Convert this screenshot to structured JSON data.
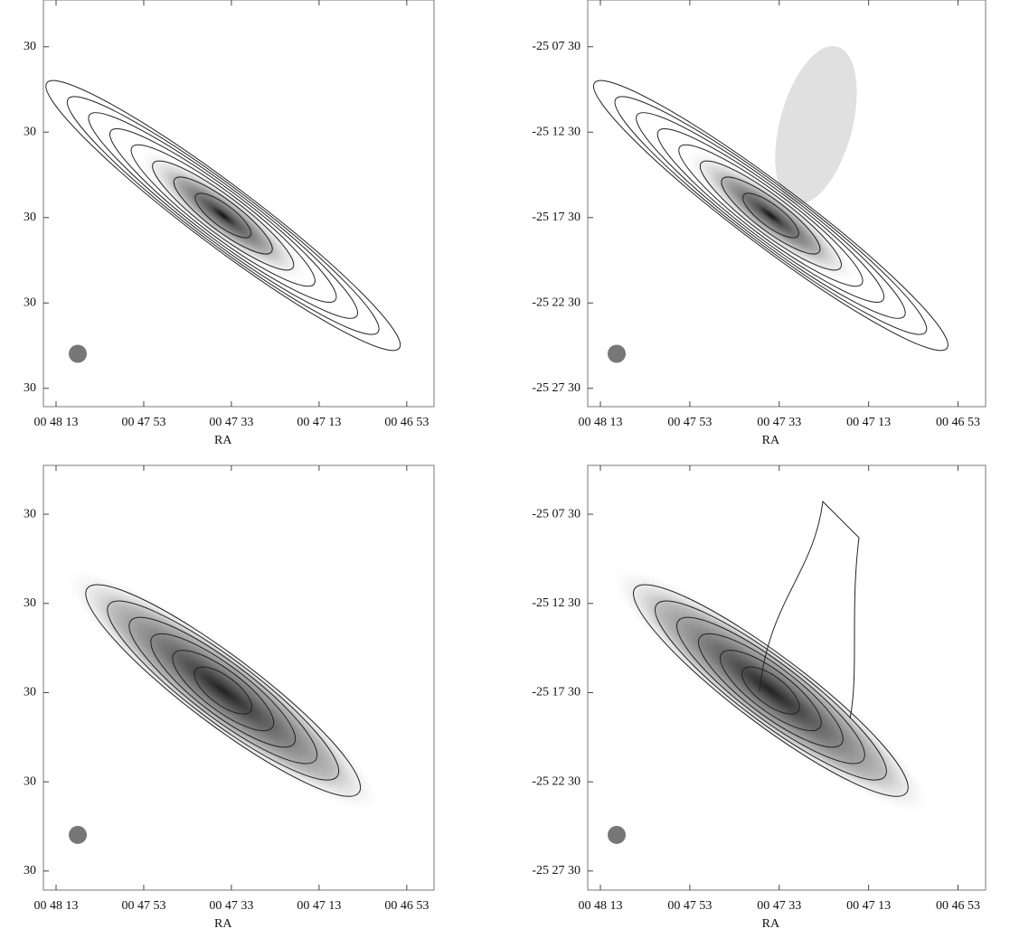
{
  "panels": [
    {
      "y_ticks": [
        "30",
        "30",
        "30",
        "30",
        "30"
      ],
      "x_ticks": [
        "00 48 13",
        "00 47 53",
        "00 47 33",
        "00 47 13",
        "00 46 53"
      ],
      "x_label": "RA"
    },
    {
      "y_ticks": [
        "-25 07 30",
        "-25 12 30",
        "-25 17 30",
        "-25 22 30",
        "-25 27 30"
      ],
      "x_ticks": [
        "00 48 13",
        "00 47 53",
        "00 47 33",
        "00 47 13",
        "00 46 53"
      ],
      "x_label": "RA"
    },
    {
      "y_ticks": [
        "30",
        "30",
        "30",
        "30",
        "30"
      ],
      "x_ticks": [
        "00 48 13",
        "00 47 53",
        "00 47 33",
        "00 47 13",
        "00 46 53"
      ],
      "x_label": "RA"
    },
    {
      "y_ticks": [
        "-25 07 30",
        "-25 12 30",
        "-25 17 30",
        "-25 22 30",
        "-25 27 30"
      ],
      "x_ticks": [
        "00 48 13",
        "00 47 53",
        "00 47 33",
        "00 47 13",
        "00 46 53"
      ],
      "x_label": "RA"
    }
  ]
}
